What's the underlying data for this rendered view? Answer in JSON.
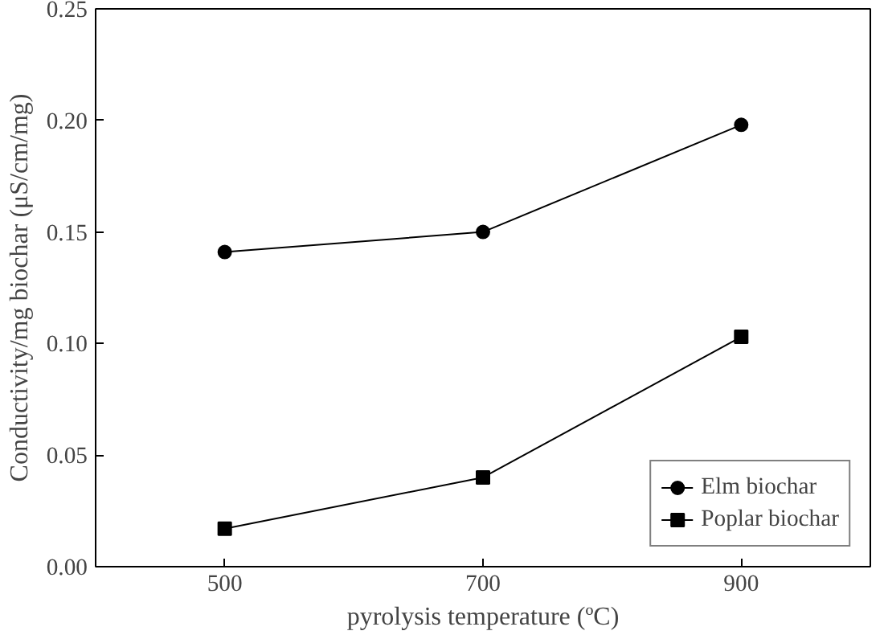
{
  "chart_data": {
    "type": "line",
    "xlabel": "pyrolysis temperature (ºC)",
    "ylabel": "Conductivity/mg biochar (μS/cm/mg)",
    "x": [
      500,
      700,
      900
    ],
    "series": [
      {
        "name": "Elm biochar",
        "color": "#000000",
        "marker": "circle",
        "values": [
          0.141,
          0.15,
          0.198
        ]
      },
      {
        "name": "Poplar biochar",
        "color": "#000000",
        "marker": "square",
        "values": [
          0.017,
          0.04,
          0.103
        ]
      }
    ],
    "xlim": [
      400,
      1000
    ],
    "xticks": [
      500,
      700,
      900
    ],
    "ylim": [
      0,
      0.25
    ],
    "yticks": [
      {
        "value": 0,
        "label": "0.00"
      },
      {
        "value": 0.05,
        "label": "0.05"
      },
      {
        "value": 0.1,
        "label": "0.10"
      },
      {
        "value": 0.15,
        "label": "0.15"
      },
      {
        "value": 0.2,
        "label": "0.20"
      },
      {
        "value": 0.25,
        "label": "0.25"
      }
    ],
    "grid": false,
    "legend": "bottom right",
    "line_style": "solid"
  }
}
